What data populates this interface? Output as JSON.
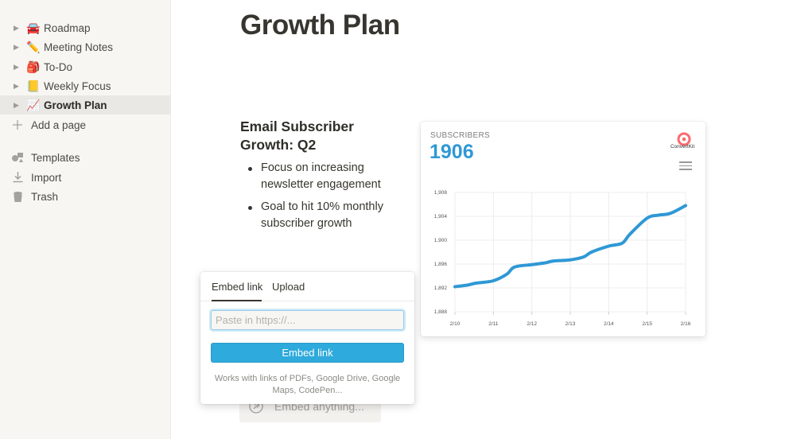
{
  "sidebar": {
    "pages": [
      {
        "emoji": "🚘",
        "label": "Roadmap"
      },
      {
        "emoji": "✏️",
        "label": "Meeting Notes"
      },
      {
        "emoji": "🎒",
        "label": "To-Do"
      },
      {
        "emoji": "📒",
        "label": "Weekly Focus"
      },
      {
        "emoji": "📈",
        "label": "Growth Plan"
      }
    ],
    "add_page": "Add a page",
    "utilities": [
      {
        "icon": "templates-icon",
        "label": "Templates"
      },
      {
        "icon": "import-icon",
        "label": "Import"
      },
      {
        "icon": "trash-icon",
        "label": "Trash"
      }
    ]
  },
  "page": {
    "title": "Growth Plan",
    "heading": "Email Subscriber Growth: Q2",
    "bullets": [
      "Focus on increasing newsletter engagement",
      "Goal to hit 10% monthly subscriber growth"
    ],
    "embed_placeholder": "Embed anything..."
  },
  "chart_card": {
    "caption": "SUBSCRIBERS",
    "value": "1906",
    "brand": "ConvertKit",
    "accent": "#2f98d5",
    "brand_color": "#fb6970"
  },
  "chart_data": {
    "type": "line",
    "title": "",
    "xlabel": "",
    "ylabel": "",
    "categories": [
      "2/10",
      "2/11",
      "2/12",
      "2/13",
      "2/14",
      "2/15",
      "2/16"
    ],
    "yticks": [
      "1,888",
      "1,892",
      "1,896",
      "1,900",
      "1,904",
      "1,908"
    ],
    "ylim": [
      1888,
      1908
    ],
    "grid": true,
    "series": [
      {
        "color": "#2f98d5",
        "x": [
          0,
          0.35,
          0.55,
          1,
          1.35,
          1.55,
          2,
          2.35,
          2.55,
          3,
          3.35,
          3.55,
          4,
          4.35,
          4.55,
          5,
          5.3,
          5.6,
          6
        ],
        "values": [
          1892.2,
          1892.5,
          1892.8,
          1893.2,
          1894.3,
          1895.5,
          1895.9,
          1896.2,
          1896.5,
          1896.7,
          1897.2,
          1898.0,
          1899.0,
          1899.5,
          1901.0,
          1903.7,
          1904.2,
          1904.5,
          1905.8
        ]
      }
    ]
  },
  "popover": {
    "tabs": [
      "Embed link",
      "Upload"
    ],
    "active_tab": "Embed link",
    "input_placeholder": "Paste in https://...",
    "input_value": "",
    "button_label": "Embed link",
    "note": "Works with links of PDFs, Google Drive, Google Maps, CodePen..."
  }
}
